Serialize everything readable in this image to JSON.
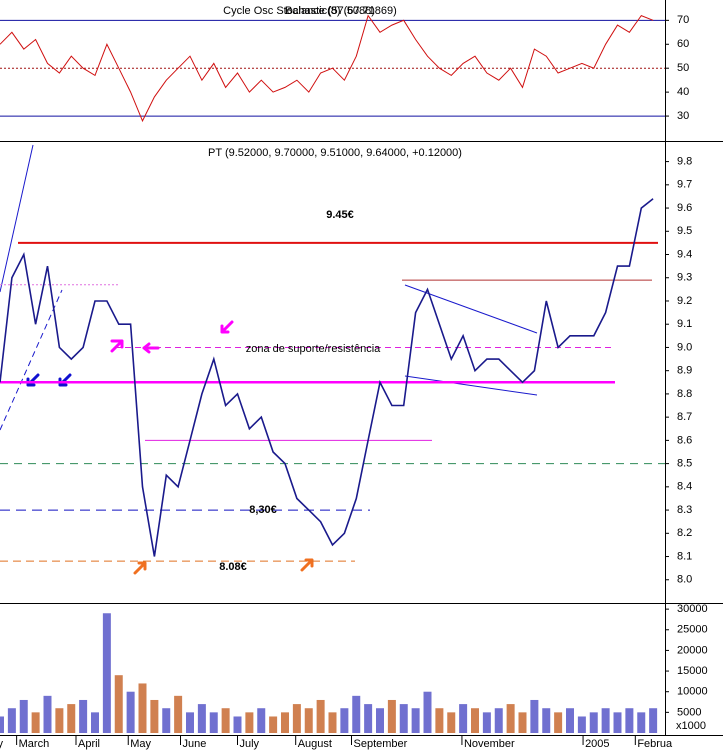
{
  "chart_data": [
    {
      "type": "line",
      "titles": [
        "Cycle Osc Stochastic(8) (67.71869)",
        "Balance (57.5088)"
      ],
      "color": "#d01010",
      "x": [
        0,
        1,
        2,
        3,
        4,
        5,
        6,
        7,
        8,
        9,
        10,
        11,
        12,
        13,
        14,
        15,
        16,
        17,
        18,
        19,
        20,
        21,
        22,
        23,
        24,
        25,
        26,
        27,
        28,
        29,
        30,
        31,
        32,
        33,
        34,
        35,
        36,
        37,
        38,
        39,
        40,
        41,
        42,
        43,
        44,
        45,
        46,
        47,
        48,
        49,
        50,
        51,
        52,
        53,
        54,
        55
      ],
      "values": [
        60,
        65,
        58,
        62,
        52,
        48,
        55,
        50,
        47,
        60,
        50,
        40,
        28,
        38,
        45,
        50,
        55,
        45,
        52,
        42,
        48,
        40,
        45,
        40,
        42,
        45,
        40,
        48,
        50,
        45,
        55,
        72,
        65,
        68,
        70,
        62,
        55,
        50,
        47,
        52,
        55,
        48,
        45,
        50,
        42,
        58,
        55,
        48,
        50,
        52,
        50,
        60,
        68,
        65,
        72,
        70
      ],
      "xlim": [
        0,
        56
      ],
      "ylim": [
        20,
        78.5
      ],
      "yticks": [
        30,
        40,
        50,
        60,
        70
      ],
      "reference_lines": [
        70,
        50,
        30
      ]
    },
    {
      "type": "line",
      "title": "PT (9.52000, 9.70000, 9.51000, 9.64000, +0.12000)",
      "color": "#1a1a8c",
      "x": [
        0,
        1,
        2,
        3,
        4,
        5,
        6,
        7,
        8,
        9,
        10,
        11,
        12,
        13,
        14,
        15,
        16,
        17,
        18,
        19,
        20,
        21,
        22,
        23,
        24,
        25,
        26,
        27,
        28,
        29,
        30,
        31,
        32,
        33,
        34,
        35,
        36,
        37,
        38,
        39,
        40,
        41,
        42,
        43,
        44,
        45,
        46,
        47,
        48,
        49,
        50,
        51,
        52,
        53,
        54,
        55
      ],
      "values": [
        8.85,
        9.3,
        9.4,
        9.1,
        9.35,
        9.0,
        8.95,
        9.0,
        9.2,
        9.2,
        9.1,
        9.1,
        8.4,
        8.1,
        8.45,
        8.4,
        8.6,
        8.8,
        8.95,
        8.75,
        8.8,
        8.65,
        8.7,
        8.55,
        8.5,
        8.35,
        8.3,
        8.25,
        8.15,
        8.2,
        8.35,
        8.6,
        8.85,
        8.75,
        8.75,
        9.15,
        9.25,
        9.1,
        8.95,
        9.05,
        8.9,
        8.95,
        8.95,
        8.9,
        8.85,
        8.9,
        9.2,
        9.0,
        9.05,
        9.05,
        9.05,
        9.15,
        9.35,
        9.35,
        9.6,
        9.64
      ],
      "xlim": [
        0,
        56
      ],
      "ylim": [
        7.9,
        9.88
      ],
      "yticks": [
        {
          "value": 8,
          "label": "8.0"
        },
        8.1,
        8.2,
        8.3,
        8.4,
        8.5,
        8.6,
        8.7,
        8.8,
        8.9,
        {
          "value": 9,
          "label": "9.0"
        },
        9.1,
        9.2,
        9.3,
        9.4,
        9.5,
        9.6,
        9.7,
        9.8
      ],
      "levels": [
        {
          "value": 9.45,
          "color": "#e01010"
        },
        {
          "value": 9.29,
          "color": "#b03030"
        },
        {
          "value": 9.27,
          "color": "#e070e0"
        },
        {
          "value": 9.0,
          "color": "#e020e0"
        },
        {
          "value": 8.85,
          "color": "#ff00ff"
        },
        {
          "value": 8.6,
          "color": "#e020e0"
        },
        {
          "value": 8.5,
          "color": "#2e8b57"
        },
        {
          "value": 8.3,
          "color": "#1010c0"
        },
        {
          "value": 8.08,
          "color": "#e07020"
        }
      ],
      "annotations": [
        "9.45€",
        "zona de suporte/resistência",
        "8,30€",
        "8.08€"
      ]
    },
    {
      "type": "bar",
      "up_color": "#7070d0",
      "down_color": "#d08050",
      "unit_label": "x1000",
      "x": [
        0,
        1,
        2,
        3,
        4,
        5,
        6,
        7,
        8,
        9,
        10,
        11,
        12,
        13,
        14,
        15,
        16,
        17,
        18,
        19,
        20,
        21,
        22,
        23,
        24,
        25,
        26,
        27,
        28,
        29,
        30,
        31,
        32,
        33,
        34,
        35,
        36,
        37,
        38,
        39,
        40,
        41,
        42,
        43,
        44,
        45,
        46,
        47,
        48,
        49,
        50,
        51,
        52,
        53,
        54,
        55
      ],
      "values": [
        4000,
        6000,
        8000,
        5000,
        9000,
        6000,
        7000,
        8000,
        5000,
        29000,
        14000,
        10000,
        12000,
        8000,
        6000,
        9000,
        5000,
        7000,
        5000,
        6000,
        4000,
        5000,
        6000,
        4000,
        5000,
        7000,
        6000,
        8000,
        5000,
        6000,
        9000,
        7000,
        6000,
        8000,
        7000,
        6000,
        10000,
        6000,
        5000,
        7000,
        6000,
        5000,
        6000,
        7000,
        5000,
        8000,
        6000,
        5000,
        6000,
        4000,
        5000,
        6000,
        5000,
        6000,
        5000,
        6000
      ],
      "xlim": [
        0,
        56
      ],
      "ylim": [
        0,
        31000
      ],
      "yticks": [
        5000,
        10000,
        15000,
        20000,
        25000,
        30000
      ],
      "xticks": [
        {
          "value": -1.2,
          "label": "ary"
        },
        {
          "value": 1.4,
          "label": "March"
        },
        {
          "value": 6.4,
          "label": "April"
        },
        {
          "value": 10.8,
          "label": "May"
        },
        {
          "value": 15.2,
          "label": "June"
        },
        {
          "value": 20.0,
          "label": "July"
        },
        {
          "value": 24.9,
          "label": "August"
        },
        {
          "value": 29.6,
          "label": "September"
        },
        {
          "value": 38.9,
          "label": "November"
        },
        {
          "value": 49.1,
          "label": "2005"
        },
        {
          "value": 53.5,
          "label": "Februa"
        }
      ]
    }
  ]
}
